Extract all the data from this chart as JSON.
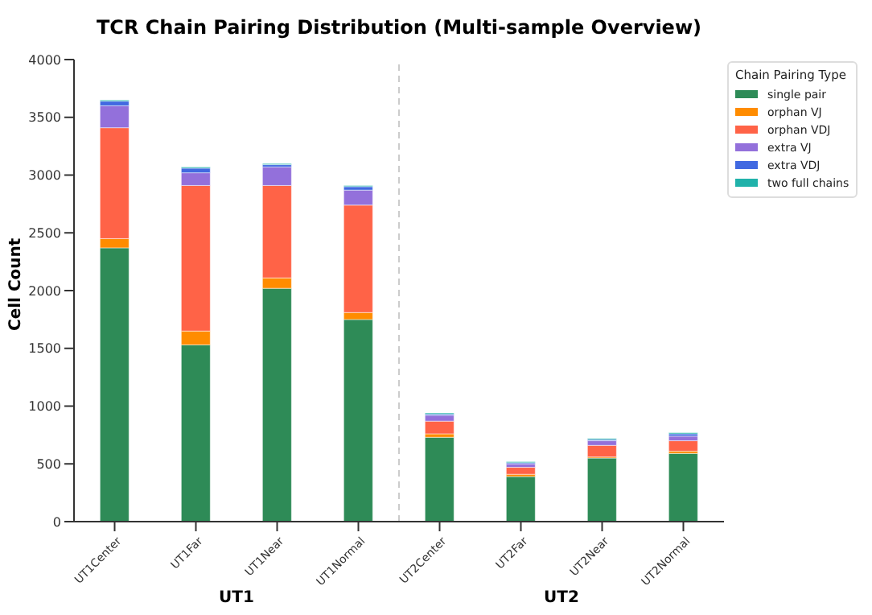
{
  "chart_data": {
    "type": "bar",
    "title": "TCR Chain Pairing Distribution (Multi-sample Overview)",
    "ylabel": "Cell Count",
    "legend_title": "Chain Pairing Type",
    "categories": [
      "UT1Center",
      "UT1Far",
      "UT1Near",
      "UT1Normal",
      "UT2Center",
      "UT2Far",
      "UT2Near",
      "UT2Normal"
    ],
    "stacked": true,
    "series": [
      {
        "name": "single pair",
        "color": "#2e8b57",
        "values": [
          2370,
          1530,
          2020,
          1750,
          730,
          390,
          550,
          590
        ]
      },
      {
        "name": "orphan VJ",
        "color": "#ff8c00",
        "values": [
          80,
          120,
          90,
          60,
          30,
          20,
          10,
          20
        ]
      },
      {
        "name": "orphan VDJ",
        "color": "#ff6347",
        "values": [
          960,
          1260,
          800,
          930,
          110,
          60,
          100,
          90
        ]
      },
      {
        "name": "extra VJ",
        "color": "#9370db",
        "values": [
          190,
          110,
          160,
          130,
          50,
          30,
          40,
          40
        ]
      },
      {
        "name": "extra VDJ",
        "color": "#4169e1",
        "values": [
          40,
          40,
          20,
          30,
          10,
          10,
          10,
          20
        ]
      },
      {
        "name": "two full chains",
        "color": "#20b2aa",
        "values": [
          10,
          10,
          10,
          10,
          10,
          10,
          10,
          10
        ]
      }
    ],
    "ylim": [
      0,
      4000
    ],
    "yticks": [
      0,
      500,
      1000,
      1500,
      2000,
      2500,
      3000,
      3500,
      4000
    ],
    "legend": "top right",
    "grid": false,
    "annotations": [
      "UT1",
      "UT2"
    ]
  }
}
